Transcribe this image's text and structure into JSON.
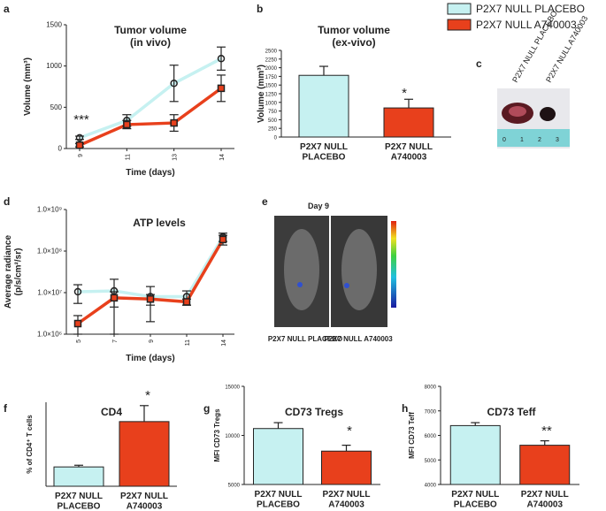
{
  "chart_data": [
    {
      "type": "line",
      "panel": "a",
      "title": "Tumor volume",
      "subtitle": "(in vivo)",
      "xlabel": "Time (days)",
      "ylabel": "Volume (mm³)",
      "categories": [
        "9",
        "11",
        "13",
        "14"
      ],
      "ylim": [
        0,
        1500
      ],
      "yticks": [
        0,
        500,
        1000,
        1500
      ],
      "annotation": "***",
      "series": [
        {
          "name": "P2X7 NULL PLACEBO",
          "color": "#c6f1f1",
          "marker": "circle",
          "values": [
            130,
            340,
            790,
            1090
          ],
          "errors": [
            20,
            70,
            220,
            140
          ]
        },
        {
          "name": "P2X7 NULL A740003",
          "color": "#e8401c",
          "marker": "square",
          "values": [
            40,
            290,
            310,
            730
          ],
          "errors": [
            20,
            50,
            100,
            160
          ]
        }
      ]
    },
    {
      "type": "bar",
      "panel": "b",
      "title": "Tumor volume",
      "subtitle": "(ex-vivo)",
      "ylabel": "Volume (mm³)",
      "categories": [
        "P2X7 NULL PLACEBO",
        "P2X7 NULL A740003"
      ],
      "colors": [
        "#c6f1f1",
        "#e8401c"
      ],
      "values": [
        1780,
        840
      ],
      "errors": [
        260,
        250
      ],
      "ylim": [
        0,
        2500
      ],
      "yticks": [
        0,
        250,
        500,
        750,
        1000,
        1250,
        1500,
        1750,
        2000,
        2250,
        2500
      ],
      "annotation": "*"
    },
    {
      "type": "line",
      "panel": "d",
      "title": "ATP levels",
      "xlabel": "Time (days)",
      "ylabel": "Average radiance (p/s/cm²/sr)",
      "log_y": true,
      "categories": [
        "5",
        "7",
        "9",
        "11",
        "14"
      ],
      "ylim": [
        1000000,
        1000000000
      ],
      "yticks": [
        {
          "value": 1000000,
          "label": "1.0×10⁶"
        },
        {
          "value": 10000000,
          "label": "1.0×10⁷"
        },
        {
          "value": 100000000,
          "label": "1.0×10⁸"
        },
        {
          "value": 1000000000,
          "label": "1.0×10⁹"
        }
      ],
      "series": [
        {
          "name": "P2X7 NULL PLACEBO",
          "color": "#c6f1f1",
          "marker": "circle",
          "values": [
            10500000,
            11000000,
            8000000,
            8000000,
            220000000
          ],
          "errors": [
            5000000,
            10000000,
            6000000,
            3000000,
            50000000
          ]
        },
        {
          "name": "P2X7 NULL A740003",
          "color": "#e8401c",
          "marker": "square",
          "values": [
            1800000,
            7500000,
            7000000,
            6000000,
            190000000
          ],
          "errors": [
            1000000,
            3000000,
            2000000,
            1000000,
            50000000
          ]
        }
      ]
    },
    {
      "type": "bar",
      "panel": "f",
      "title": "CD4",
      "ylabel": "% of CD4⁺ T cells",
      "categories": [
        "P2X7 NULL PLACEBO",
        "P2X7 NULL A740003"
      ],
      "colors": [
        "#c6f1f1",
        "#e8401c"
      ],
      "values": [
        2.3,
        7.7
      ],
      "errors": [
        0.2,
        1.9
      ],
      "ylim": [
        0,
        10
      ],
      "annotation": "*"
    },
    {
      "type": "bar",
      "panel": "g",
      "title": "CD73 Tregs",
      "ylabel": "MFI CD73 Tregs",
      "categories": [
        "P2X7 NULL PLACEBO",
        "P2X7 NULL A740003"
      ],
      "colors": [
        "#c6f1f1",
        "#e8401c"
      ],
      "values": [
        10700,
        8400
      ],
      "errors": [
        600,
        600
      ],
      "ylim": [
        5000,
        15000
      ],
      "yticks": [
        5000,
        10000,
        15000
      ],
      "annotation": "*"
    },
    {
      "type": "bar",
      "panel": "h",
      "title": "CD73 Teff",
      "ylabel": "MFI CD73 Teff",
      "categories": [
        "P2X7 NULL PLACEBO",
        "P2X7 NULL A740003"
      ],
      "colors": [
        "#c6f1f1",
        "#e8401c"
      ],
      "values": [
        6400,
        5600
      ],
      "errors": [
        120,
        180
      ],
      "ylim": [
        4000,
        8000
      ],
      "yticks": [
        4000,
        5000,
        6000,
        7000,
        8000
      ],
      "annotation": "**"
    }
  ],
  "photos": [
    {
      "panel": "c",
      "labels": [
        "P2X7 NULL PLACEBO",
        "P2X7 NULL A740003"
      ],
      "ruler": [
        "0",
        "1",
        "2",
        "3"
      ]
    },
    {
      "panel": "e",
      "title": "Day 9",
      "labels": [
        "P2X7 NULL PLACEBO",
        "P2X7 NULL A740003"
      ]
    }
  ]
}
